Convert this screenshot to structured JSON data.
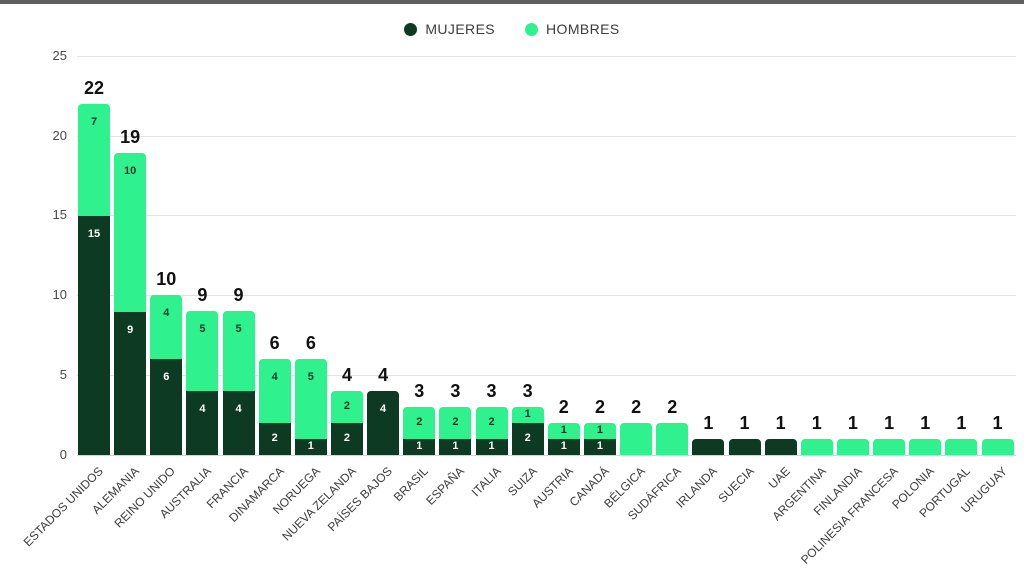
{
  "page": {
    "background": "#ffffff",
    "top_border_color": "#606060"
  },
  "legend": {
    "items": [
      {
        "label": "MUJERES",
        "color": "#0d3a23"
      },
      {
        "label": "HOMBRES",
        "color": "#2ff18e"
      }
    ]
  },
  "chart_data": {
    "type": "bar",
    "stacked": true,
    "title": "",
    "xlabel": "",
    "ylabel": "",
    "ylim": [
      0,
      25
    ],
    "yticks": [
      0,
      5,
      10,
      15,
      20,
      25
    ],
    "grid": true,
    "legend_position": "top-center",
    "categories": [
      "ESTADOS UNIDOS",
      "ALEMANIA",
      "REINO UNIDO",
      "AUSTRALIA",
      "FRANCIA",
      "DINAMARCA",
      "NORUEGA",
      "NUEVA ZELANDA",
      "PAÍSES BAJOS",
      "BRASIL",
      "ESPAÑA",
      "ITALIA",
      "SUIZA",
      "AUSTRIA",
      "CANADÁ",
      "BÉLGICA",
      "SUDÁFRICA",
      "IRLANDA",
      "SUECIA",
      "UAE",
      "ARGENTINA",
      "FINLANDIA",
      "POLINESIA FRANCESA",
      "POLONIA",
      "PORTUGAL",
      "URUGUAY"
    ],
    "series": [
      {
        "name": "MUJERES",
        "color": "#0d3a23",
        "label_color": "#ffffff",
        "values": [
          15,
          9,
          6,
          4,
          4,
          2,
          1,
          2,
          4,
          1,
          1,
          1,
          2,
          1,
          1,
          0,
          0,
          1,
          1,
          1,
          0,
          0,
          0,
          0,
          0,
          0
        ],
        "labels": [
          "15",
          "9",
          "6",
          "4",
          "4",
          "2",
          "1",
          "2",
          "4",
          "1",
          "1",
          "1",
          "2",
          "1",
          "1",
          "",
          "",
          "",
          "",
          "",
          "",
          "",
          "",
          "",
          "",
          ""
        ]
      },
      {
        "name": "HOMBRES",
        "color": "#2ff18e",
        "label_color": "#0d3a23",
        "values": [
          7,
          10,
          4,
          5,
          5,
          4,
          5,
          2,
          0,
          2,
          2,
          2,
          1,
          1,
          1,
          2,
          2,
          0,
          0,
          0,
          1,
          1,
          1,
          1,
          1,
          1
        ],
        "labels": [
          "7",
          "10",
          "4",
          "5",
          "5",
          "4",
          "5",
          "2",
          "",
          "2",
          "2",
          "2",
          "1",
          "1",
          "1",
          "",
          "",
          "",
          "",
          "",
          "",
          "",
          "",
          "",
          "",
          ""
        ]
      }
    ],
    "totals": [
      "22",
      "19",
      "10",
      "9",
      "9",
      "6",
      "6",
      "4",
      "4",
      "3",
      "3",
      "3",
      "3",
      "2",
      "2",
      "2",
      "2",
      "1",
      "1",
      "1",
      "1",
      "1",
      "1",
      "1",
      "1",
      "1"
    ]
  }
}
